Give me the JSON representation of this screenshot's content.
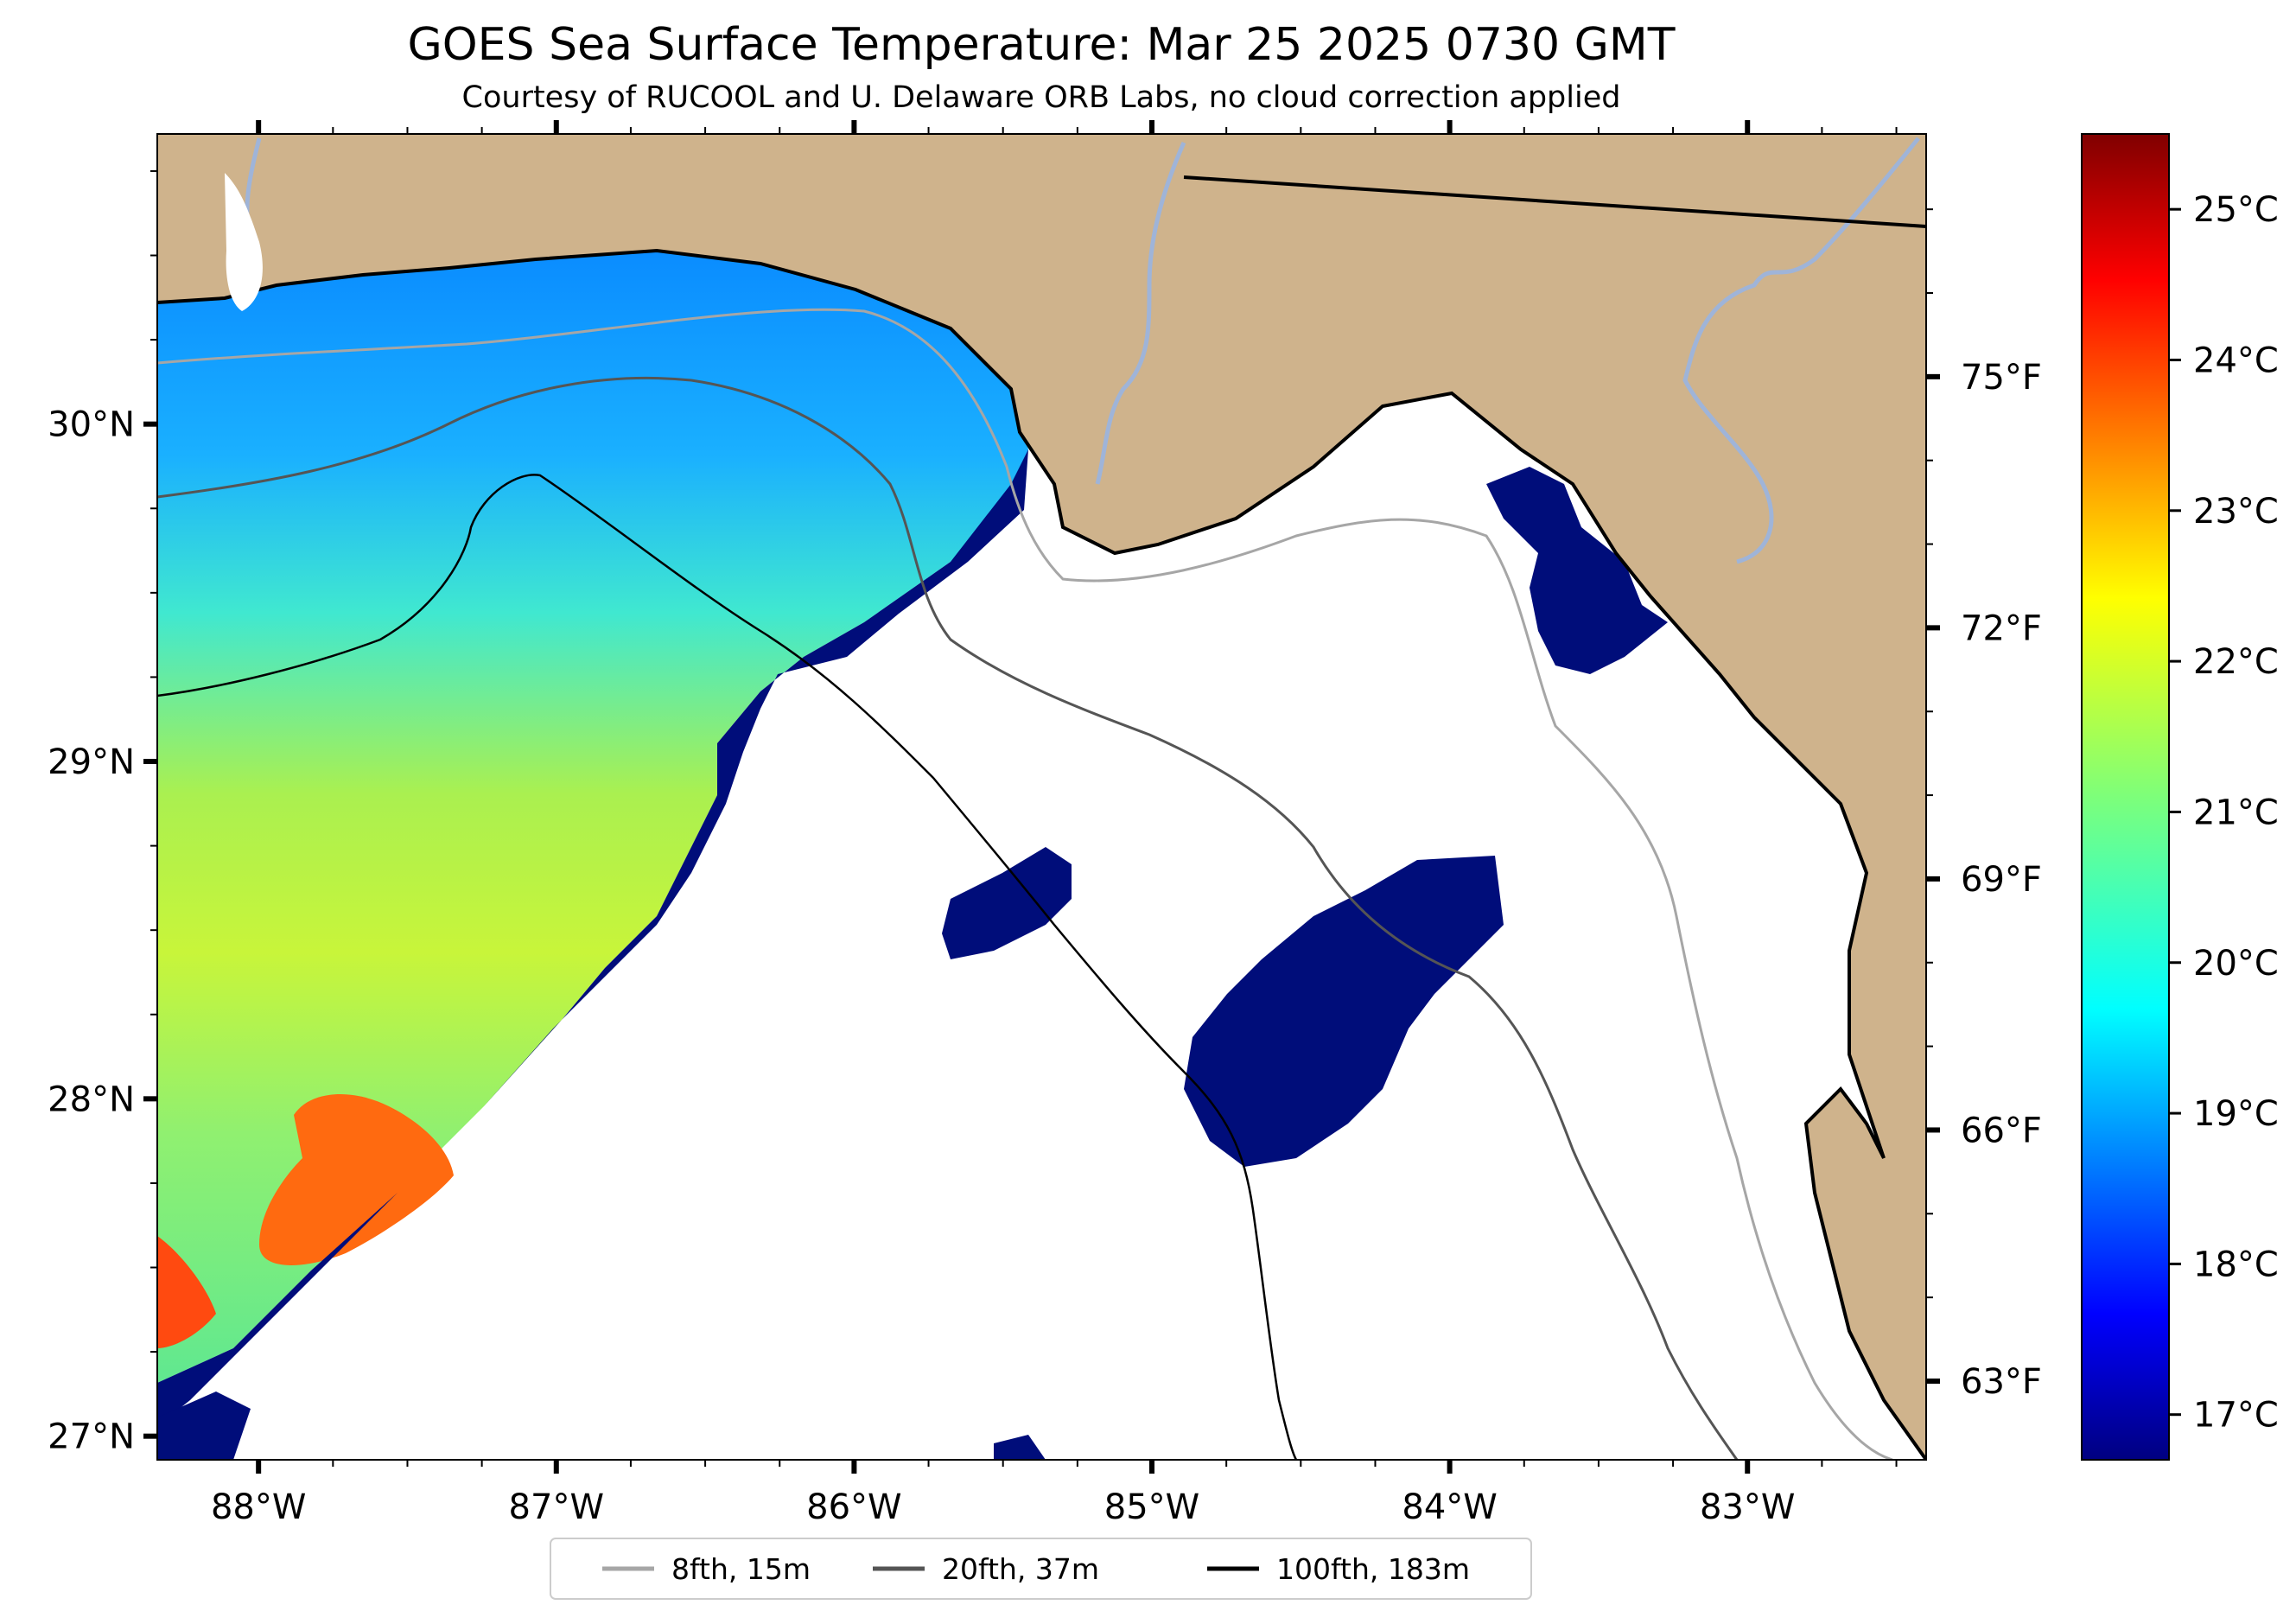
{
  "title": "GOES Sea Surface Temperature: Mar 25 2025 0730 GMT",
  "subtitle": "Courtesy of RUCOOL and U. Delaware ORB Labs, no cloud correction applied",
  "map": {
    "lon_range": [
      -88.34,
      -82.4
    ],
    "lat_range": [
      26.93,
      30.86
    ],
    "lon_ticks": [
      {
        "value": -88,
        "label": "88°W"
      },
      {
        "value": -87,
        "label": "87°W"
      },
      {
        "value": -86,
        "label": "86°W"
      },
      {
        "value": -85,
        "label": "85°W"
      },
      {
        "value": -84,
        "label": "84°W"
      },
      {
        "value": -83,
        "label": "83°W"
      }
    ],
    "lat_ticks": [
      {
        "value": 30,
        "label": "30°N"
      },
      {
        "value": 29,
        "label": "29°N"
      },
      {
        "value": 28,
        "label": "28°N"
      },
      {
        "value": 27,
        "label": "27°N"
      }
    ],
    "colors": {
      "land": "#cfb38c",
      "no_data": "#ffffff",
      "river": "#9fb4d8",
      "coast": "#000000"
    }
  },
  "fahrenheit_ticks": [
    {
      "value": 75,
      "label": "75°F"
    },
    {
      "value": 72,
      "label": "72°F"
    },
    {
      "value": 69,
      "label": "69°F"
    },
    {
      "value": 66,
      "label": "66°F"
    },
    {
      "value": 63,
      "label": "63°F"
    }
  ],
  "colorbar": {
    "range_c": [
      16.7,
      25.5
    ],
    "colormap": "jet",
    "ticks": [
      {
        "value": 25,
        "label": "25°C"
      },
      {
        "value": 24,
        "label": "24°C"
      },
      {
        "value": 23,
        "label": "23°C"
      },
      {
        "value": 22,
        "label": "22°C"
      },
      {
        "value": 21,
        "label": "21°C"
      },
      {
        "value": 20,
        "label": "20°C"
      },
      {
        "value": 19,
        "label": "19°C"
      },
      {
        "value": 18,
        "label": "18°C"
      },
      {
        "value": 17,
        "label": "17°C"
      }
    ]
  },
  "legend": [
    {
      "label": "8fth, 15m",
      "color": "#a6a6a6"
    },
    {
      "label": "20fth, 37m",
      "color": "#555555"
    },
    {
      "label": "100fth, 183m",
      "color": "#000000"
    }
  ]
}
